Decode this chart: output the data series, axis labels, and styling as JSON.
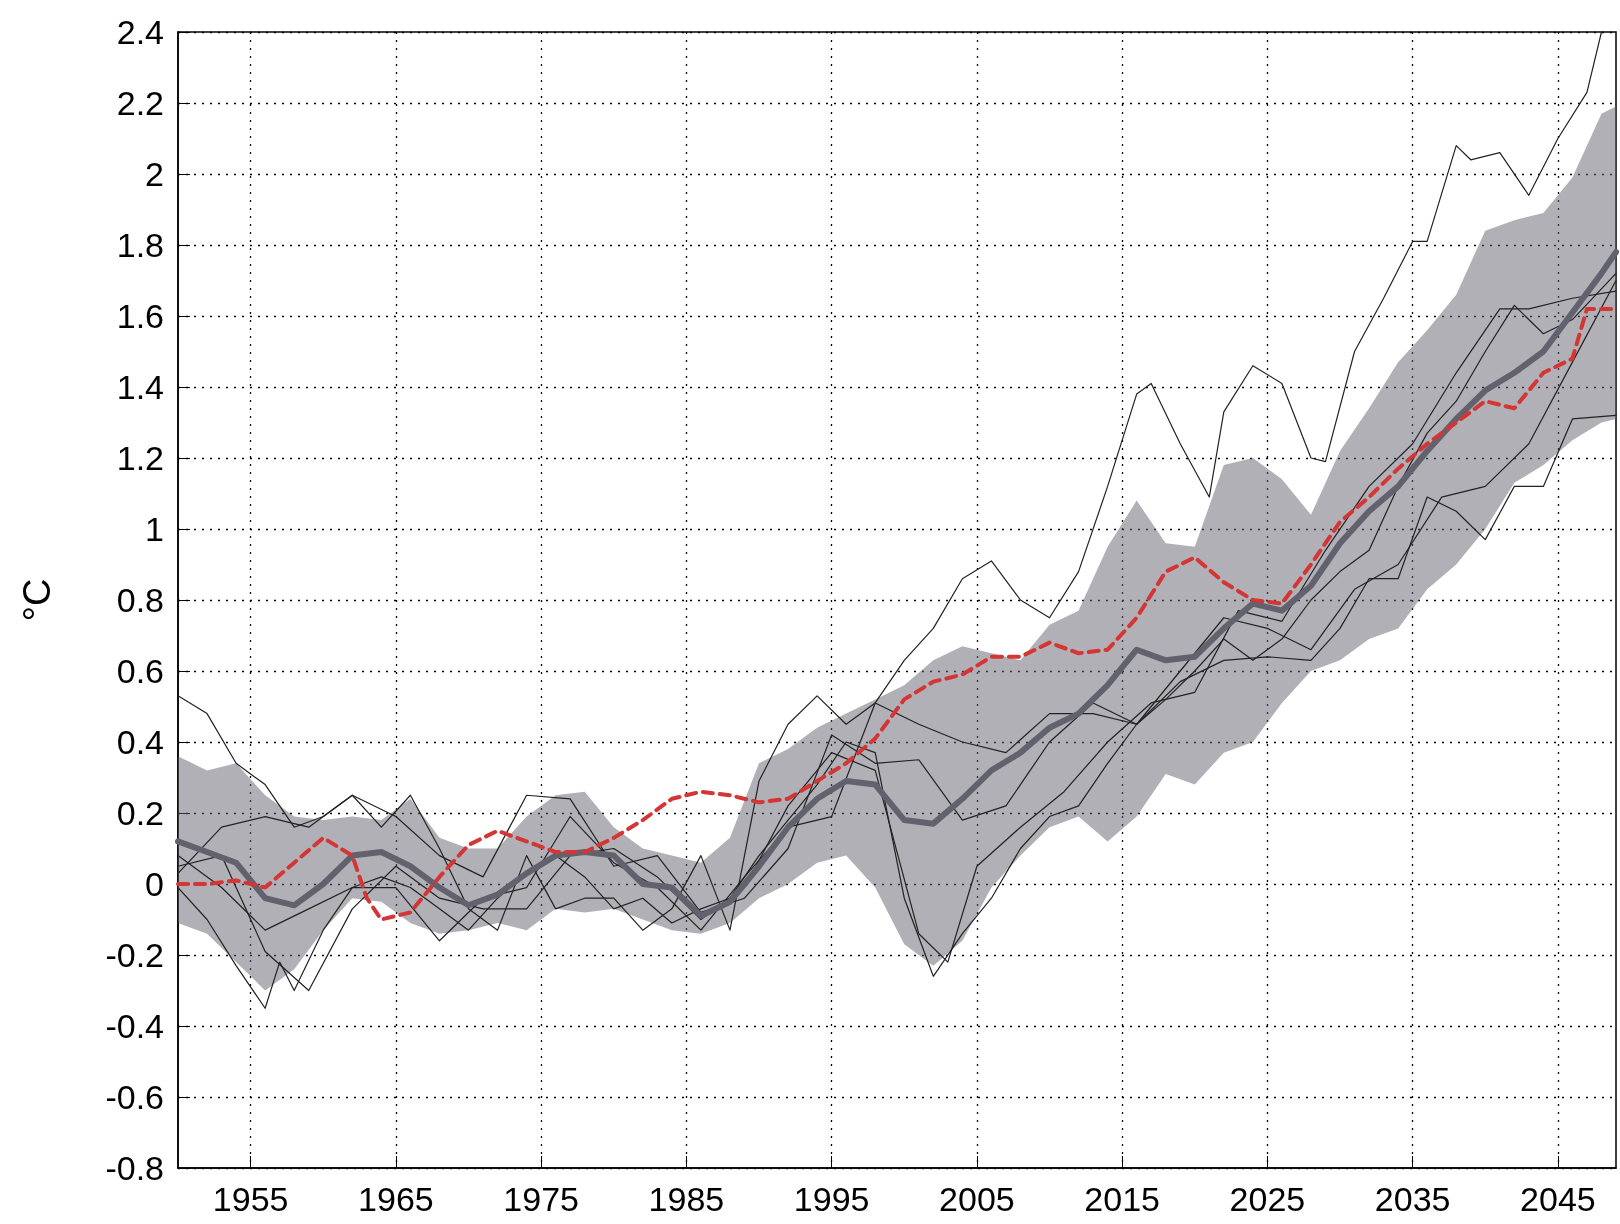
{
  "chart_data": {
    "type": "line",
    "ylabel": "°C",
    "xlim": [
      1950,
      2049
    ],
    "xticks": [
      1955,
      1965,
      1975,
      1985,
      1995,
      2005,
      2015,
      2025,
      2035,
      2045
    ],
    "ylim": [
      -0.8,
      2.4
    ],
    "yticks": [
      -0.8,
      -0.6,
      -0.4,
      -0.2,
      0,
      0.2,
      0.4,
      0.6,
      0.8,
      1,
      1.2,
      1.4,
      1.6,
      1.8,
      2,
      2.2,
      2.4
    ],
    "grid": true,
    "marker": "none",
    "series": [
      {
        "color": "#222222",
        "line_style": "solid",
        "x": [
          1950,
          1952,
          1954,
          1956,
          1958,
          1960,
          1962,
          1964,
          1966,
          1968,
          1970,
          1972,
          1974,
          1976,
          1978,
          1980,
          1982,
          1984,
          1986,
          1988,
          1990,
          1992,
          1994,
          1996,
          1998,
          2000,
          2002,
          2004,
          2006,
          2008,
          2010,
          2012,
          2014,
          2016,
          2017,
          2019,
          2021,
          2022,
          2024,
          2026,
          2028,
          2029,
          2031,
          2033,
          2035,
          2036,
          2038,
          2039,
          2041,
          2043,
          2045,
          2047,
          2048
        ],
        "values": [
          0.53,
          0.48,
          0.34,
          0.28,
          0.16,
          0.19,
          0.25,
          0.16,
          0.25,
          0.1,
          -0.07,
          -0.13,
          0.08,
          -0.07,
          -0.04,
          -0.04,
          -0.13,
          -0.07,
          0.08,
          -0.13,
          0.29,
          0.45,
          0.53,
          0.45,
          0.51,
          0.63,
          0.72,
          0.86,
          0.91,
          0.8,
          0.75,
          0.88,
          1.12,
          1.38,
          1.41,
          1.24,
          1.09,
          1.33,
          1.46,
          1.41,
          1.2,
          1.19,
          1.5,
          1.65,
          1.81,
          1.81,
          2.08,
          2.04,
          2.06,
          1.94,
          2.1,
          2.23,
          2.4
        ]
      },
      {
        "color": "#222222",
        "line_style": "solid",
        "x": [
          1950,
          1952,
          1954,
          1956,
          1957,
          1958,
          1960,
          1962,
          1964,
          1966,
          1968,
          1970,
          1972,
          1974,
          1976,
          1978,
          1980,
          1982,
          1984,
          1986,
          1988,
          1990,
          1992,
          1994,
          1996,
          1998,
          2000,
          2002,
          2004,
          2006,
          2008,
          2010,
          2012,
          2014,
          2016,
          2018,
          2020,
          2022,
          2024,
          2026,
          2028,
          2030,
          2032,
          2034,
          2036,
          2038,
          2040,
          2042,
          2044,
          2046,
          2049
        ],
        "values": [
          -0.01,
          -0.1,
          -0.23,
          -0.35,
          -0.22,
          -0.3,
          -0.13,
          -0.01,
          0.02,
          -0.01,
          -0.07,
          -0.13,
          -0.04,
          0.03,
          0.08,
          0.02,
          -0.07,
          -0.04,
          -0.11,
          -0.07,
          -0.04,
          0.08,
          0.18,
          0.28,
          0.4,
          0.37,
          -0.04,
          -0.26,
          -0.14,
          -0.04,
          0.1,
          0.19,
          0.22,
          0.34,
          0.45,
          0.52,
          0.6,
          0.69,
          0.63,
          0.69,
          0.8,
          0.88,
          0.94,
          1.12,
          1.27,
          1.36,
          1.5,
          1.63,
          1.55,
          1.59,
          1.72
        ]
      },
      {
        "color": "#222222",
        "line_style": "solid",
        "x": [
          1950,
          1953,
          1956,
          1959,
          1962,
          1965,
          1968,
          1971,
          1974,
          1977,
          1980,
          1983,
          1986,
          1989,
          1992,
          1995,
          1998,
          2001,
          2004,
          2007,
          2010,
          2013,
          2016,
          2019,
          2022,
          2025,
          2028,
          2030,
          2032,
          2034,
          2036,
          2038,
          2040,
          2042,
          2044,
          2046,
          2049
        ],
        "values": [
          0.03,
          0.16,
          0.19,
          0.16,
          0.25,
          0.19,
          0.08,
          0.02,
          0.25,
          0.24,
          0.05,
          0.08,
          -0.08,
          -0.04,
          0.1,
          0.42,
          0.34,
          0.35,
          0.18,
          0.22,
          0.4,
          0.51,
          0.45,
          0.57,
          0.63,
          0.64,
          0.63,
          0.72,
          0.86,
          0.86,
          1.09,
          1.05,
          0.97,
          1.12,
          1.12,
          1.31,
          1.32
        ]
      },
      {
        "color": "#222222",
        "line_style": "solid",
        "x": [
          1950,
          1953,
          1956,
          1959,
          1962,
          1965,
          1968,
          1971,
          1974,
          1977,
          1980,
          1983,
          1986,
          1989,
          1992,
          1995,
          1998,
          2001,
          2004,
          2007,
          2010,
          2013,
          2016,
          2019,
          2022,
          2025,
          2028,
          2031,
          2034,
          2037,
          2040,
          2043,
          2046,
          2049
        ],
        "values": [
          0.08,
          -0.01,
          -0.13,
          -0.07,
          -0.01,
          -0.01,
          -0.16,
          -0.04,
          -0.01,
          0.19,
          0.06,
          -0.01,
          -0.13,
          0.02,
          0.16,
          0.19,
          0.51,
          0.45,
          0.4,
          0.37,
          0.48,
          0.48,
          0.45,
          0.6,
          0.75,
          0.72,
          0.66,
          0.83,
          0.9,
          1.09,
          1.12,
          1.24,
          1.47,
          1.7
        ]
      },
      {
        "color": "#222222",
        "line_style": "solid",
        "x": [
          1950,
          1953,
          1956,
          1959,
          1962,
          1965,
          1968,
          1971,
          1974,
          1977,
          1980,
          1983,
          1986,
          1989,
          1992,
          1995,
          1998,
          2001,
          2003,
          2005,
          2008,
          2011,
          2014,
          2017,
          2020,
          2023,
          2026,
          2029,
          2032,
          2035,
          2038,
          2041,
          2043,
          2046,
          2049
        ],
        "values": [
          0.05,
          0.08,
          -0.19,
          -0.3,
          -0.07,
          0.05,
          -0.04,
          -0.07,
          -0.07,
          0.08,
          0.1,
          0.02,
          -0.1,
          -0.01,
          0.22,
          0.37,
          0.32,
          -0.14,
          -0.22,
          0.05,
          0.16,
          0.26,
          0.4,
          0.51,
          0.54,
          0.77,
          0.74,
          0.94,
          1.12,
          1.24,
          1.44,
          1.62,
          1.62,
          1.65,
          1.67
        ]
      },
      {
        "color": "#62626e",
        "line_style": "solid",
        "x": [
          1950,
          1952,
          1954,
          1956,
          1958,
          1960,
          1962,
          1964,
          1966,
          1968,
          1970,
          1972,
          1974,
          1976,
          1978,
          1980,
          1982,
          1984,
          1986,
          1988,
          1990,
          1992,
          1994,
          1996,
          1998,
          2000,
          2002,
          2004,
          2006,
          2008,
          2010,
          2012,
          2014,
          2016,
          2018,
          2020,
          2022,
          2024,
          2026,
          2028,
          2030,
          2032,
          2034,
          2036,
          2038,
          2040,
          2042,
          2044,
          2046,
          2048,
          2049
        ],
        "values": [
          0.12,
          0.09,
          0.06,
          -0.04,
          -0.06,
          0.0,
          0.08,
          0.09,
          0.05,
          -0.01,
          -0.06,
          -0.03,
          0.03,
          0.08,
          0.09,
          0.08,
          0.0,
          -0.01,
          -0.09,
          -0.05,
          0.05,
          0.16,
          0.24,
          0.29,
          0.28,
          0.18,
          0.17,
          0.24,
          0.32,
          0.37,
          0.44,
          0.48,
          0.56,
          0.66,
          0.63,
          0.64,
          0.72,
          0.79,
          0.77,
          0.84,
          0.96,
          1.05,
          1.12,
          1.22,
          1.31,
          1.39,
          1.44,
          1.5,
          1.61,
          1.72,
          1.78
        ],
        "upper": [
          0.36,
          0.32,
          0.34,
          0.25,
          0.19,
          0.18,
          0.19,
          0.18,
          0.24,
          0.13,
          0.1,
          0.1,
          0.19,
          0.25,
          0.26,
          0.16,
          0.1,
          0.08,
          0.06,
          0.13,
          0.34,
          0.38,
          0.44,
          0.48,
          0.52,
          0.56,
          0.63,
          0.67,
          0.65,
          0.63,
          0.73,
          0.77,
          0.95,
          1.08,
          0.96,
          0.95,
          1.18,
          1.2,
          1.14,
          1.04,
          1.22,
          1.34,
          1.47,
          1.56,
          1.66,
          1.84,
          1.87,
          1.89,
          1.99,
          2.17,
          2.19
        ],
        "lower": [
          -0.11,
          -0.14,
          -0.22,
          -0.3,
          -0.24,
          -0.13,
          -0.04,
          -0.05,
          -0.11,
          -0.14,
          -0.13,
          -0.11,
          -0.13,
          -0.07,
          -0.08,
          -0.07,
          -0.1,
          -0.13,
          -0.14,
          -0.11,
          -0.04,
          0.0,
          0.06,
          0.08,
          -0.01,
          -0.17,
          -0.23,
          -0.16,
          -0.01,
          0.08,
          0.16,
          0.19,
          0.12,
          0.19,
          0.31,
          0.28,
          0.37,
          0.4,
          0.51,
          0.6,
          0.63,
          0.69,
          0.72,
          0.83,
          0.9,
          1.0,
          1.13,
          1.18,
          1.25,
          1.3,
          1.31
        ]
      },
      {
        "color": "#d43535",
        "line_style": "dashed",
        "x": [
          1950,
          1952,
          1954,
          1956,
          1958,
          1960,
          1962,
          1963,
          1964,
          1966,
          1968,
          1970,
          1972,
          1974,
          1976,
          1978,
          1980,
          1982,
          1984,
          1986,
          1988,
          1990,
          1992,
          1994,
          1996,
          1998,
          2000,
          2002,
          2004,
          2006,
          2008,
          2010,
          2012,
          2014,
          2016,
          2018,
          2020,
          2022,
          2024,
          2026,
          2028,
          2030,
          2032,
          2034,
          2036,
          2038,
          2040,
          2042,
          2044,
          2046,
          2047,
          2049
        ],
        "values": [
          0.0,
          0.0,
          0.01,
          -0.01,
          0.06,
          0.13,
          0.08,
          -0.04,
          -0.1,
          -0.08,
          0.02,
          0.11,
          0.15,
          0.12,
          0.09,
          0.09,
          0.13,
          0.18,
          0.24,
          0.26,
          0.25,
          0.23,
          0.24,
          0.29,
          0.34,
          0.41,
          0.52,
          0.57,
          0.59,
          0.64,
          0.64,
          0.68,
          0.65,
          0.66,
          0.75,
          0.88,
          0.92,
          0.85,
          0.8,
          0.79,
          0.9,
          1.02,
          1.09,
          1.17,
          1.24,
          1.3,
          1.36,
          1.34,
          1.44,
          1.48,
          1.62,
          1.62
        ]
      }
    ]
  }
}
